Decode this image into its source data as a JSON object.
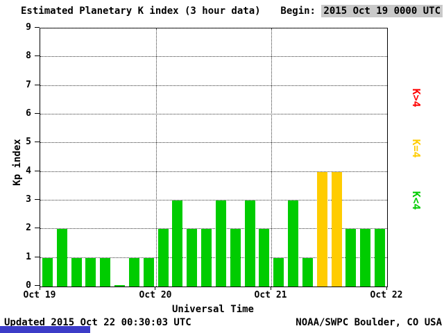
{
  "header": {
    "title": "Estimated Planetary K index (3 hour data)",
    "begin_label": "Begin:",
    "begin_value": "2015 Oct 19 0000 UTC"
  },
  "chart_data": {
    "type": "bar",
    "title": "Estimated Planetary K index (3 hour data)",
    "xlabel": "Universal Time",
    "ylabel": "Kp index",
    "ylim": [
      0,
      9
    ],
    "yticks": [
      0,
      1,
      2,
      3,
      4,
      5,
      6,
      7,
      8,
      9
    ],
    "xtick_labels": [
      "Oct 19",
      "Oct 20",
      "Oct 21",
      "Oct 22"
    ],
    "bin_hours": 3,
    "begin": "2015 Oct 19 0000 UTC",
    "values": [
      1,
      2,
      1,
      1,
      1,
      0,
      1,
      1,
      2,
      3,
      2,
      2,
      3,
      2,
      3,
      2,
      1,
      3,
      1,
      4,
      4,
      2,
      2,
      2
    ],
    "colors": {
      "below4": "#00cc00",
      "equal4": "#ffcc00",
      "above4": "#ff0000"
    },
    "grid": {
      "horizontal": "dotted line at each integer Kp",
      "vertical": "dotted line at each day boundary"
    },
    "legend_position": "right"
  },
  "legend": {
    "items": [
      {
        "label": "K>4",
        "color": "#ff0000"
      },
      {
        "label": "K=4",
        "color": "#ffcc00"
      },
      {
        "label": "K<4",
        "color": "#00cc00"
      }
    ]
  },
  "footer": {
    "updated": "Updated 2015 Oct 22 00:30:03 UTC",
    "source": "NOAA/SWPC Boulder, CO USA"
  }
}
